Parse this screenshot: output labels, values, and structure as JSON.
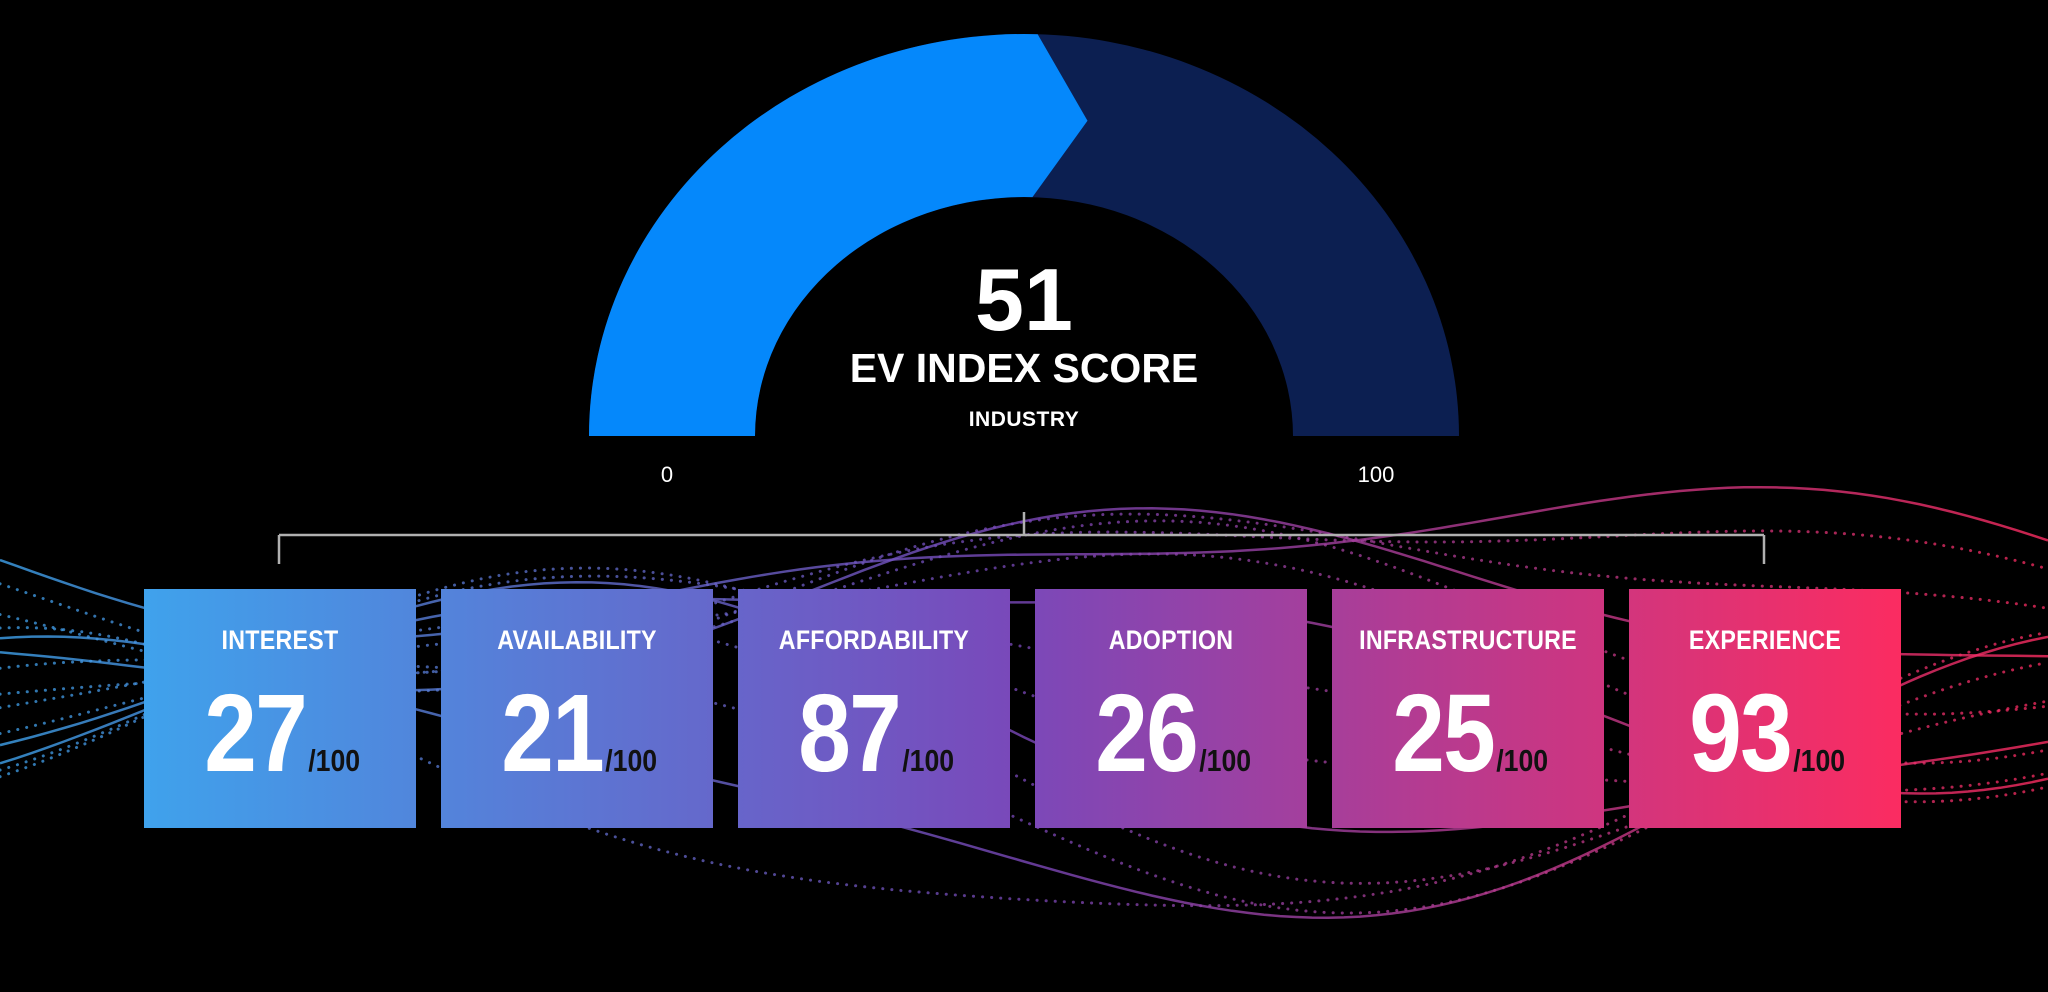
{
  "gauge": {
    "value": 51,
    "min_label": "0",
    "max_label": "100",
    "score_text": "51",
    "title": "EV INDEX SCORE",
    "subtitle": "INDUSTRY",
    "fill_color": "#0588fb",
    "track_color": "#0c1f51"
  },
  "categories": [
    {
      "label": "INTEREST",
      "value": "27",
      "max": "/100"
    },
    {
      "label": "AVAILABILITY",
      "value": "21",
      "max": "/100"
    },
    {
      "label": "AFFORDABILITY",
      "value": "87",
      "max": "/100"
    },
    {
      "label": "ADOPTION",
      "value": "26",
      "max": "/100"
    },
    {
      "label": "INFRASTRUCTURE",
      "value": "25",
      "max": "/100"
    },
    {
      "label": "EXPERIENCE",
      "value": "93",
      "max": "/100"
    }
  ],
  "colors": {
    "gradient_start": "#3fa2ec",
    "gradient_mid": "#7a48b9",
    "gradient_end": "#fb2c61",
    "bracket": "#b0b0b0"
  }
}
